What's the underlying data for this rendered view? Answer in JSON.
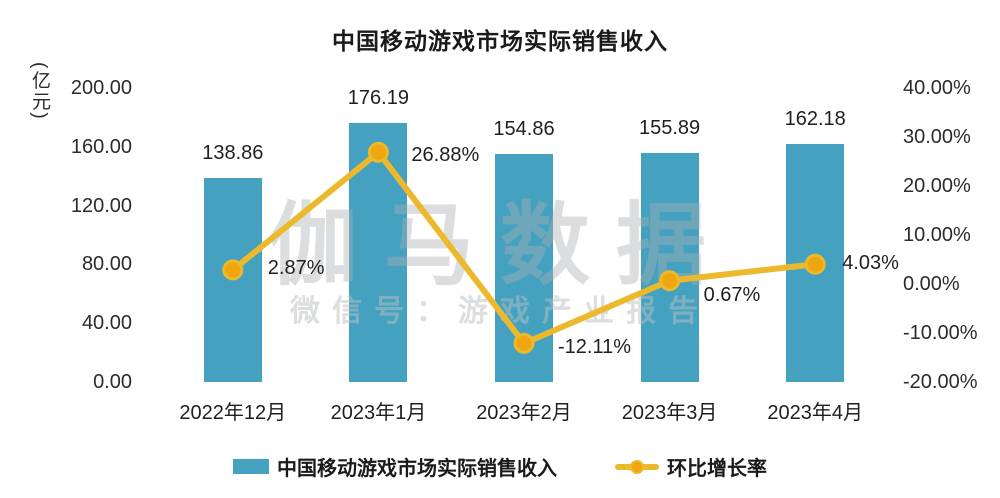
{
  "title": "中国移动游戏市场实际销售收入",
  "watermark": {
    "main": "伽马数据",
    "sub": "微信号：游戏产业报告"
  },
  "colors": {
    "bar": "#44a2c0",
    "line": "#ecb92c",
    "marker": "#f0a60f",
    "text": "#1f1f1f"
  },
  "chart_data": {
    "type": "bar",
    "subtype": "combo-bar-line",
    "title": "中国移动游戏市场实际销售收入",
    "categories": [
      "2022年12月",
      "2023年1月",
      "2023年2月",
      "2023年3月",
      "2023年4月"
    ],
    "series": [
      {
        "name": "中国移动游戏市场实际销售收入",
        "type": "bar",
        "axis": "left",
        "values": [
          138.86,
          176.19,
          154.86,
          155.89,
          162.18
        ],
        "labels": [
          "138.86",
          "176.19",
          "154.86",
          "155.89",
          "162.18"
        ],
        "color": "#44a2c0"
      },
      {
        "name": "环比增长率",
        "type": "line",
        "axis": "right",
        "values": [
          2.87,
          26.88,
          -12.11,
          0.67,
          4.03
        ],
        "labels": [
          "2.87%",
          "26.88%",
          "-12.11%",
          "0.67%",
          "4.03%"
        ],
        "color": "#ecb92c"
      }
    ],
    "left_axis": {
      "unit": "(亿元)",
      "min": 0,
      "max": 200,
      "ticks": [
        {
          "value": 200,
          "label": "200.00"
        },
        {
          "value": 160,
          "label": "160.00"
        },
        {
          "value": 120,
          "label": "120.00"
        },
        {
          "value": 80,
          "label": "80.00"
        },
        {
          "value": 40,
          "label": "40.00"
        },
        {
          "value": 0,
          "label": "0.00"
        }
      ]
    },
    "right_axis": {
      "min": -20,
      "max": 40,
      "ticks": [
        {
          "value": 40,
          "label": "40.00%"
        },
        {
          "value": 30,
          "label": "30.00%"
        },
        {
          "value": 20,
          "label": "20.00%"
        },
        {
          "value": 10,
          "label": "10.00%"
        },
        {
          "value": 0,
          "label": "0.00%"
        },
        {
          "value": -10,
          "label": "-10.00%"
        },
        {
          "value": -20,
          "label": "-20.00%"
        }
      ]
    },
    "grid": false,
    "legend_position": "bottom",
    "legend": [
      {
        "label": "中国移动游戏市场实际销售收入",
        "swatch": "bar"
      },
      {
        "label": "环比增长率",
        "swatch": "line"
      }
    ]
  }
}
